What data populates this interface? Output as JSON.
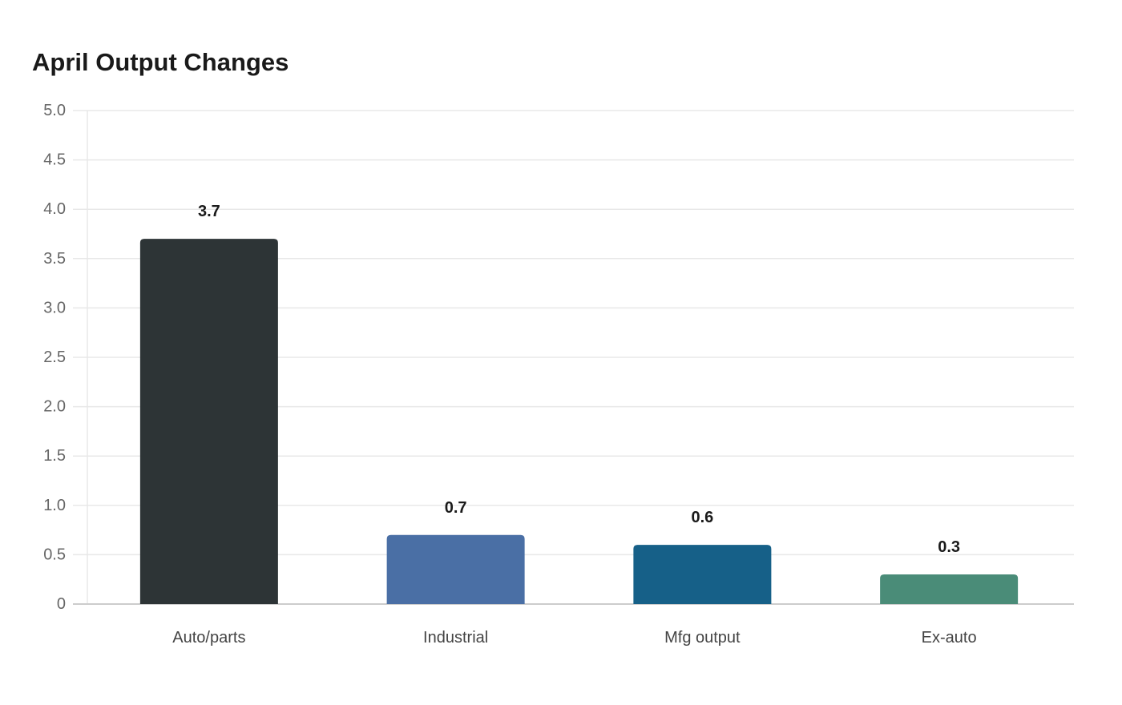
{
  "chart_data": {
    "type": "bar",
    "title": "April Output Changes",
    "xlabel": "",
    "ylabel": "",
    "categories": [
      "Auto/parts",
      "Industrial",
      "Mfg output",
      "Ex-auto"
    ],
    "values": [
      3.7,
      0.7,
      0.6,
      0.3
    ],
    "value_labels": [
      "3.7",
      "0.7",
      "0.6",
      "0.3"
    ],
    "bar_colors": [
      "#2d3436",
      "#4a6fa5",
      "#166088",
      "#4a8c78"
    ],
    "ylim": [
      0,
      5
    ],
    "yticks": [
      0,
      0.5,
      1,
      1.5,
      2,
      2.5,
      3,
      3.5,
      4,
      4.5,
      5
    ],
    "ytick_labels": [
      "0",
      "0.5",
      "1.0",
      "1.5",
      "2.0",
      "2.5",
      "3.0",
      "3.5",
      "4.0",
      "4.5",
      "5.0"
    ],
    "grid": true,
    "legend": "none",
    "colors": {
      "grid": "#e8e8e8",
      "axis": "#cccccc"
    }
  }
}
